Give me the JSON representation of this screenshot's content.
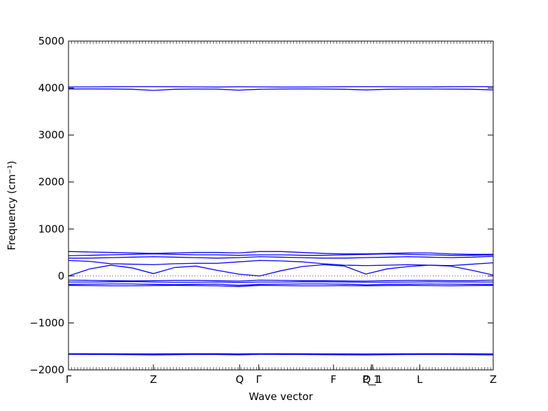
{
  "chart_data": {
    "type": "line",
    "xlabel": "Wave vector",
    "ylabel": "Frequency (cm⁻¹)",
    "xlim": [
      0,
      1
    ],
    "xticks": [
      {
        "value": 0,
        "label": "Γ"
      },
      {
        "value": 0.2,
        "label": "Z"
      },
      {
        "value": 0.403,
        "label": "Q"
      },
      {
        "value": 0.448,
        "label": "Γ"
      },
      {
        "value": 0.624,
        "label": "F"
      },
      {
        "value": 0.713,
        "label": "P_1"
      },
      {
        "value": 0.716,
        "label": "Q_1"
      },
      {
        "value": 0.827,
        "label": "L"
      },
      {
        "value": 1,
        "label": "Z"
      }
    ],
    "ylim": [
      -2000,
      5000
    ],
    "yticks": [
      {
        "value": -2000,
        "label": "−2000"
      },
      {
        "value": -1000,
        "label": "−1000"
      },
      0,
      1000,
      2000,
      3000,
      4000,
      5000
    ],
    "zero_line": true,
    "x": [
      0,
      0.05,
      0.1,
      0.15,
      0.2,
      0.25,
      0.3,
      0.35,
      0.4,
      0.45,
      0.5,
      0.55,
      0.6,
      0.65,
      0.7,
      0.75,
      0.8,
      0.85,
      0.9,
      0.95,
      1
    ],
    "series": [
      {
        "color": "#0000ff",
        "values": [
          4025,
          4025,
          4028,
          4030,
          4030,
          4028,
          4025,
          4022,
          4028,
          4025,
          4022,
          4022,
          4025,
          4028,
          4030,
          4028,
          4025,
          4025,
          4028,
          4030,
          4030
        ]
      },
      {
        "color": "#0000ff",
        "values": [
          3980,
          3982,
          3980,
          3975,
          3950,
          3975,
          3980,
          3978,
          3955,
          3975,
          3980,
          3982,
          3980,
          3975,
          3960,
          3975,
          3980,
          3980,
          3978,
          3975,
          3960
        ]
      },
      {
        "color": "#0000ff",
        "values": [
          0,
          150,
          230,
          170,
          50,
          180,
          210,
          120,
          40,
          0,
          110,
          200,
          240,
          210,
          40,
          150,
          200,
          230,
          210,
          120,
          20
        ]
      },
      {
        "color": "#0000ff",
        "values": [
          330,
          310,
          260,
          250,
          240,
          260,
          270,
          270,
          300,
          330,
          320,
          300,
          260,
          230,
          220,
          230,
          240,
          230,
          220,
          250,
          280
        ]
      },
      {
        "color": "#0000ff",
        "values": [
          380,
          380,
          390,
          400,
          410,
          400,
          390,
          380,
          390,
          410,
          400,
          390,
          380,
          380,
          390,
          400,
          410,
          400,
          390,
          400,
          420
        ]
      },
      {
        "color": "#0000ff",
        "values": [
          430,
          440,
          450,
          460,
          470,
          460,
          450,
          450,
          440,
          450,
          450,
          440,
          440,
          450,
          460,
          470,
          460,
          450,
          440,
          440,
          450
        ]
      },
      {
        "color": "#0000ff",
        "values": [
          520,
          510,
          500,
          490,
          480,
          490,
          500,
          500,
          490,
          520,
          520,
          500,
          480,
          470,
          470,
          480,
          490,
          490,
          470,
          460,
          460
        ]
      },
      {
        "color": "#0000ff",
        "values": [
          -90,
          -95,
          -100,
          -105,
          -100,
          -95,
          -95,
          -100,
          -110,
          -90,
          -95,
          -100,
          -100,
          -105,
          -110,
          -100,
          -95,
          -95,
          -100,
          -100,
          -90
        ]
      },
      {
        "color": "#0000ff",
        "values": [
          -130,
          -130,
          -125,
          -120,
          -130,
          -135,
          -135,
          -130,
          -140,
          -130,
          -130,
          -125,
          -125,
          -130,
          -135,
          -135,
          -130,
          -125,
          -130,
          -130,
          -130
        ]
      },
      {
        "color": "#0000ff",
        "values": [
          -180,
          -175,
          -170,
          -170,
          -180,
          -185,
          -180,
          -175,
          -200,
          -180,
          -175,
          -170,
          -170,
          -175,
          -190,
          -180,
          -175,
          -170,
          -175,
          -180,
          -180
        ]
      },
      {
        "color": "#0000ff",
        "values": [
          -200,
          -205,
          -210,
          -210,
          -205,
          -200,
          -205,
          -210,
          -225,
          -200,
          -205,
          -210,
          -210,
          -205,
          -210,
          -205,
          -200,
          -205,
          -210,
          -205,
          -200
        ]
      },
      {
        "color": "#0000ff",
        "values": [
          -1655,
          -1655,
          -1658,
          -1660,
          -1660,
          -1658,
          -1655,
          -1655,
          -1660,
          -1655,
          -1655,
          -1658,
          -1660,
          -1660,
          -1662,
          -1660,
          -1658,
          -1655,
          -1655,
          -1658,
          -1660
        ]
      },
      {
        "color": "#0000ff",
        "values": [
          -1668,
          -1670,
          -1672,
          -1675,
          -1680,
          -1675,
          -1670,
          -1672,
          -1678,
          -1668,
          -1670,
          -1672,
          -1675,
          -1678,
          -1680,
          -1675,
          -1672,
          -1670,
          -1672,
          -1675,
          -1680
        ]
      }
    ]
  }
}
